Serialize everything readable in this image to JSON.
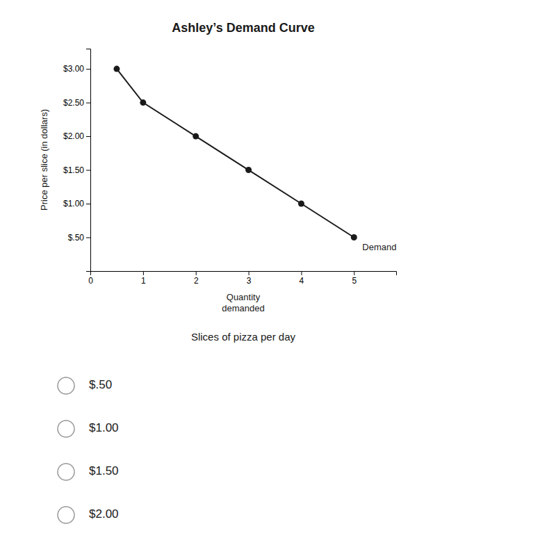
{
  "chart_data": {
    "type": "line",
    "title": "Ashley’s Demand Curve",
    "subtitle": "Slices of pizza per day",
    "xlabel": "Quantity\ndemanded",
    "ylabel": "Price per slice (in dollars)",
    "x": [
      0.5,
      1,
      2,
      3,
      4,
      5
    ],
    "values": [
      3.0,
      2.5,
      2.0,
      1.5,
      1.0,
      0.5
    ],
    "color": "#1a1a1a",
    "marker": "circle",
    "xlim": [
      0,
      5.8
    ],
    "ylim": [
      0,
      3.3
    ],
    "xticks": [
      0,
      1,
      2,
      3,
      4,
      5
    ],
    "yticks": [
      {
        "value": 0.5,
        "label": "$.50"
      },
      {
        "value": 1.0,
        "label": "$1.00"
      },
      {
        "value": 1.5,
        "label": "$1.50"
      },
      {
        "value": 2.0,
        "label": "$2.00"
      },
      {
        "value": 2.5,
        "label": "$2.50"
      },
      {
        "value": 3.0,
        "label": "$3.00"
      }
    ],
    "annotations": [
      "Demand"
    ],
    "choices": [
      "$.50",
      "$1.00",
      "$1.50",
      "$2.00"
    ]
  }
}
